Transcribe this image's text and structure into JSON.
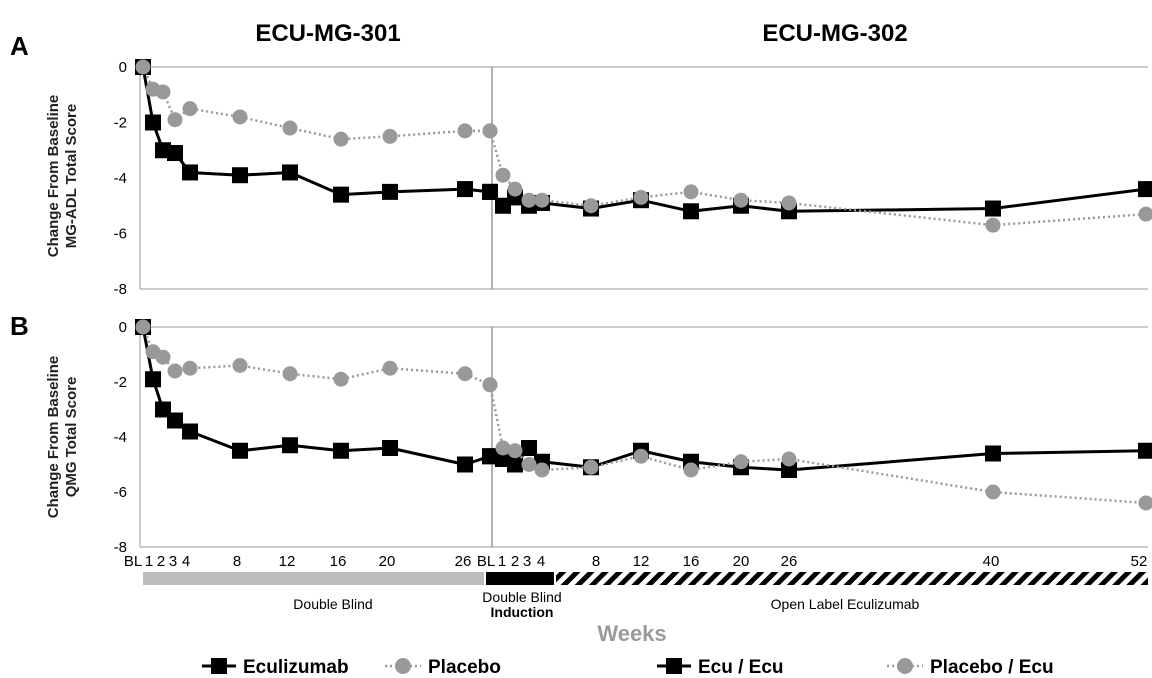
{
  "colors": {
    "ecu": "#000000",
    "placebo": "#999999",
    "axis": "#999999",
    "double_blind_bar": "#bdbdbd",
    "induction_bar": "#000000",
    "open_label_bar": "#000000",
    "xlabel": "#9a9a9a"
  },
  "study_titles": {
    "left": "ECU-MG-301",
    "right": "ECU-MG-302"
  },
  "panel_letters": {
    "a": "A",
    "b": "B"
  },
  "x_axis": {
    "title": "Weeks",
    "tick_labels_301": [
      "BL",
      "1",
      "2",
      "3",
      "4",
      "8",
      "12",
      "16",
      "20",
      "26"
    ],
    "tick_labels_302": [
      "BL",
      "1",
      "2",
      "3",
      "4",
      "8",
      "12",
      "16",
      "20",
      "26",
      "40",
      "52"
    ],
    "phases": {
      "double_blind": "Double Blind",
      "induction_line1": "Double Blind",
      "induction_line2": "Induction",
      "open_label": "Open Label Eculizumab"
    }
  },
  "legend": {
    "left": [
      {
        "label": "Eculizumab",
        "marker": "square",
        "color": "#000000"
      },
      {
        "label": "Placebo",
        "marker": "circle",
        "color": "#999999"
      }
    ],
    "right": [
      {
        "label": "Ecu / Ecu",
        "marker": "square",
        "color": "#000000"
      },
      {
        "label": "Placebo / Ecu",
        "marker": "circle",
        "color": "#999999"
      }
    ]
  },
  "chart_data": [
    {
      "type": "line",
      "panel": "A",
      "ylabel": [
        "Change From Baseline",
        "MG-ADL Total Score"
      ],
      "ylim": [
        -8,
        0
      ],
      "yticks": [
        0,
        -2,
        -4,
        -6,
        -8
      ],
      "grid": false,
      "series": [
        {
          "name": "Eculizumab",
          "study": "ECU-MG-301",
          "style": "solid-square",
          "x": [
            "BL",
            "1",
            "2",
            "3",
            "4",
            "8",
            "12",
            "16",
            "20",
            "26",
            "BL"
          ],
          "values": [
            0,
            -2.0,
            -3.0,
            -3.1,
            -3.8,
            -3.9,
            -3.8,
            -4.6,
            -4.5,
            -4.4,
            -4.5
          ]
        },
        {
          "name": "Placebo",
          "study": "ECU-MG-301",
          "style": "dotted-circle",
          "x": [
            "BL",
            "1",
            "2",
            "3",
            "4",
            "8",
            "12",
            "16",
            "20",
            "26",
            "BL"
          ],
          "values": [
            0,
            -0.8,
            -0.9,
            -1.9,
            -1.5,
            -1.8,
            -2.2,
            -2.6,
            -2.5,
            -2.3,
            -2.3
          ]
        },
        {
          "name": "Ecu / Ecu",
          "study": "ECU-MG-302",
          "style": "solid-square",
          "x": [
            "BL",
            "1",
            "2",
            "3",
            "4",
            "8",
            "12",
            "16",
            "20",
            "26",
            "40",
            "52"
          ],
          "values": [
            -4.5,
            -5.0,
            -4.7,
            -5.0,
            -4.9,
            -5.1,
            -4.8,
            -5.2,
            -5.0,
            -5.2,
            -5.1,
            -4.4
          ]
        },
        {
          "name": "Placebo / Ecu",
          "study": "ECU-MG-302",
          "style": "dotted-circle",
          "x": [
            "BL",
            "1",
            "2",
            "3",
            "4",
            "8",
            "12",
            "16",
            "20",
            "26",
            "40",
            "52"
          ],
          "values": [
            -2.3,
            -3.9,
            -4.4,
            -4.8,
            -4.8,
            -5.0,
            -4.7,
            -4.5,
            -4.8,
            -4.9,
            -5.7,
            -5.3
          ]
        }
      ]
    },
    {
      "type": "line",
      "panel": "B",
      "ylabel": [
        "Change From Baseline",
        "QMG Total Score"
      ],
      "ylim": [
        -8,
        0
      ],
      "yticks": [
        0,
        -2,
        -4,
        -6,
        -8
      ],
      "grid": false,
      "series": [
        {
          "name": "Eculizumab",
          "study": "ECU-MG-301",
          "style": "solid-square",
          "x": [
            "BL",
            "1",
            "2",
            "3",
            "4",
            "8",
            "12",
            "16",
            "20",
            "26",
            "BL"
          ],
          "values": [
            0,
            -1.9,
            -3.0,
            -3.4,
            -3.8,
            -4.5,
            -4.3,
            -4.5,
            -4.4,
            -5.0,
            -4.7
          ]
        },
        {
          "name": "Placebo",
          "study": "ECU-MG-301",
          "style": "dotted-circle",
          "x": [
            "BL",
            "1",
            "2",
            "3",
            "4",
            "8",
            "12",
            "16",
            "20",
            "26",
            "BL"
          ],
          "values": [
            0,
            -0.9,
            -1.1,
            -1.6,
            -1.5,
            -1.4,
            -1.7,
            -1.9,
            -1.5,
            -1.7,
            -2.1
          ]
        },
        {
          "name": "Ecu / Ecu",
          "study": "ECU-MG-302",
          "style": "solid-square",
          "x": [
            "BL",
            "1",
            "2",
            "3",
            "4",
            "8",
            "12",
            "16",
            "20",
            "26",
            "40",
            "52"
          ],
          "values": [
            -4.7,
            -4.8,
            -5.0,
            -4.4,
            -4.9,
            -5.1,
            -4.5,
            -4.9,
            -5.1,
            -5.2,
            -4.6,
            -4.5
          ]
        },
        {
          "name": "Placebo / Ecu",
          "study": "ECU-MG-302",
          "style": "dotted-circle",
          "x": [
            "BL",
            "1",
            "2",
            "3",
            "4",
            "8",
            "12",
            "16",
            "20",
            "26",
            "40",
            "52"
          ],
          "values": [
            -2.1,
            -4.4,
            -4.5,
            -5.0,
            -5.2,
            -5.1,
            -4.7,
            -5.2,
            -4.9,
            -4.8,
            -6.0,
            -6.4
          ]
        }
      ]
    }
  ]
}
